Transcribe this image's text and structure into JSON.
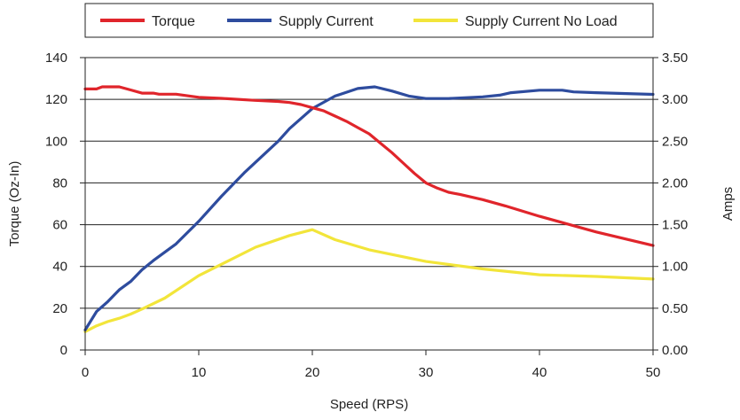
{
  "chart_data": {
    "type": "line",
    "title": "",
    "xlabel": "Speed (RPS)",
    "ylabel_left": "Torque (Oz-In)",
    "ylabel_right": "Amps",
    "xlim": [
      0,
      50
    ],
    "ylim_left": [
      0,
      140
    ],
    "ylim_right": [
      0,
      3.5
    ],
    "x_ticks": [
      "0",
      "10",
      "20",
      "30",
      "40",
      "50"
    ],
    "y_left_ticks": [
      "0",
      "20",
      "40",
      "60",
      "80",
      "100",
      "120",
      "140"
    ],
    "y_right_ticks": [
      "0.00",
      "0.50",
      "1.00",
      "1.50",
      "2.00",
      "2.50",
      "3.00",
      "3.50"
    ],
    "grid": "horizontal",
    "legend_position": "top",
    "series": [
      {
        "name": "Torque",
        "axis": "left",
        "color": "#e0252b",
        "points": [
          [
            0,
            125
          ],
          [
            1,
            125
          ],
          [
            1.5,
            126
          ],
          [
            2,
            126
          ],
          [
            3,
            126
          ],
          [
            4,
            124.5
          ],
          [
            5,
            123
          ],
          [
            6,
            123
          ],
          [
            6.5,
            122.5
          ],
          [
            8,
            122.5
          ],
          [
            10,
            121
          ],
          [
            12,
            120.5
          ],
          [
            15,
            119.5
          ],
          [
            17,
            119
          ],
          [
            18,
            118.5
          ],
          [
            19,
            117.5
          ],
          [
            20,
            116
          ],
          [
            21,
            114.5
          ],
          [
            22,
            112
          ],
          [
            23,
            109.5
          ],
          [
            24,
            106.5
          ],
          [
            25,
            103.5
          ],
          [
            26,
            99
          ],
          [
            27,
            94.5
          ],
          [
            28,
            89.5
          ],
          [
            29,
            84.5
          ],
          [
            30,
            80
          ],
          [
            31,
            77.5
          ],
          [
            32,
            75.5
          ],
          [
            33,
            74.5
          ],
          [
            35,
            72
          ],
          [
            37,
            69
          ],
          [
            40,
            64
          ],
          [
            45,
            56.5
          ],
          [
            50,
            50
          ]
        ]
      },
      {
        "name": "Supply Current",
        "axis": "right",
        "color": "#2e4c9e",
        "points": [
          [
            0,
            0.24
          ],
          [
            0.5,
            0.35
          ],
          [
            1,
            0.46
          ],
          [
            1.5,
            0.52
          ],
          [
            2,
            0.58
          ],
          [
            3,
            0.72
          ],
          [
            4,
            0.82
          ],
          [
            5,
            0.96
          ],
          [
            6,
            1.07
          ],
          [
            8,
            1.27
          ],
          [
            10,
            1.54
          ],
          [
            12,
            1.84
          ],
          [
            14,
            2.12
          ],
          [
            17,
            2.5
          ],
          [
            18,
            2.65
          ],
          [
            20,
            2.89
          ],
          [
            22,
            3.04
          ],
          [
            24,
            3.13
          ],
          [
            25.5,
            3.15
          ],
          [
            27,
            3.1
          ],
          [
            28.5,
            3.04
          ],
          [
            30,
            3.01
          ],
          [
            32,
            3.01
          ],
          [
            35,
            3.03
          ],
          [
            36.5,
            3.05
          ],
          [
            37.5,
            3.08
          ],
          [
            40,
            3.11
          ],
          [
            42,
            3.11
          ],
          [
            43,
            3.09
          ],
          [
            45,
            3.08
          ],
          [
            50,
            3.06
          ]
        ]
      },
      {
        "name": "Supply Current No Load",
        "axis": "right",
        "color": "#f2e53a",
        "points": [
          [
            0,
            0.22
          ],
          [
            1,
            0.29
          ],
          [
            2,
            0.34
          ],
          [
            3,
            0.38
          ],
          [
            4,
            0.43
          ],
          [
            5,
            0.49
          ],
          [
            7,
            0.62
          ],
          [
            10,
            0.89
          ],
          [
            15,
            1.23
          ],
          [
            18,
            1.37
          ],
          [
            20,
            1.44
          ],
          [
            22,
            1.32
          ],
          [
            25,
            1.2
          ],
          [
            30,
            1.06
          ],
          [
            35,
            0.97
          ],
          [
            40,
            0.9
          ],
          [
            45,
            0.88
          ],
          [
            50,
            0.85
          ]
        ]
      }
    ]
  }
}
